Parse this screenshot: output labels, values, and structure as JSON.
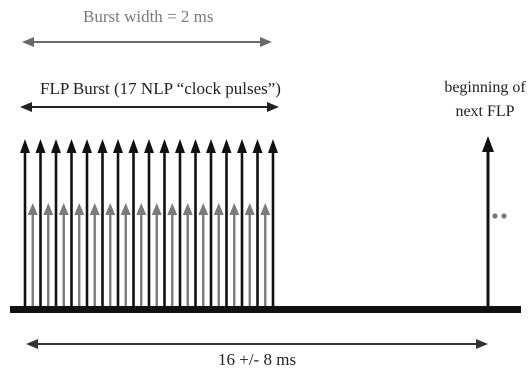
{
  "labels": {
    "burst_width": "Burst width = 2 ms",
    "flp_burst": "FLP Burst (17 NLP “clock pulses”)",
    "next_flp_line1": "beginning of",
    "next_flp_line2": "next FLP",
    "period": "16 +/- 8 ms"
  },
  "diagram": {
    "burst_clock_pulses": 17,
    "burst_data_pulses": 16,
    "continuation": "• •"
  },
  "colors": {
    "baseline": "#111111",
    "clock_pulse": "#111111",
    "data_pulse": "#7b7b7b",
    "dimension_arrow_top": "#6a6a6a",
    "dimension_arrow": "#333333",
    "continuation_dots": "#777777"
  }
}
